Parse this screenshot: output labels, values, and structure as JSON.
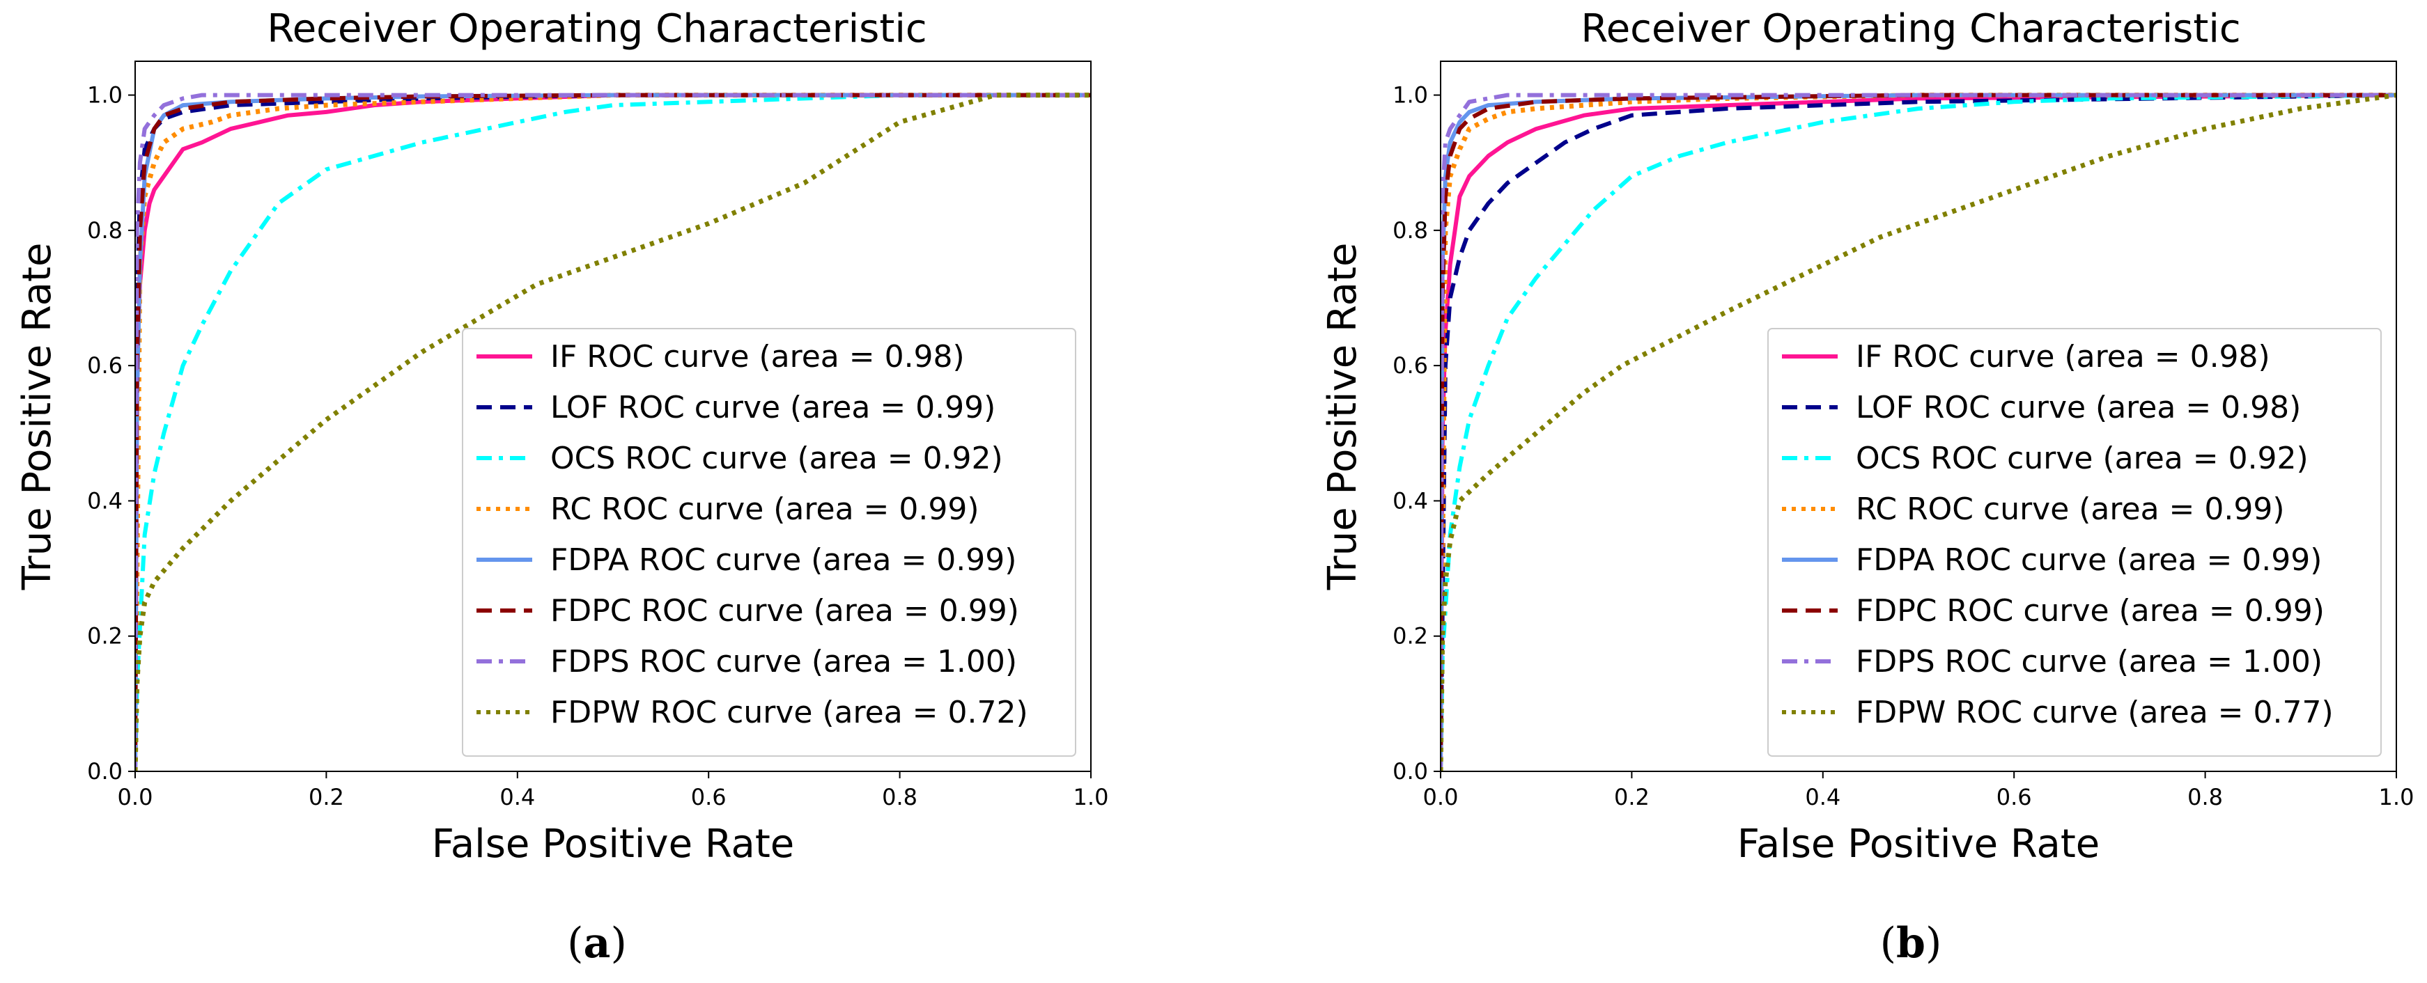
{
  "chart_data": [
    {
      "type": "line",
      "panel_label": "a",
      "title": "Receiver Operating Characteristic",
      "xlabel": "False Positive Rate",
      "ylabel": "True Positive Rate",
      "xlim": [
        0.0,
        1.0
      ],
      "ylim": [
        0.0,
        1.05
      ],
      "xticks": [
        "0.0",
        "0.2",
        "0.4",
        "0.6",
        "0.8",
        "1.0"
      ],
      "yticks": [
        "0.0",
        "0.2",
        "0.4",
        "0.6",
        "0.8",
        "1.0"
      ],
      "grid": false,
      "legend_position": "lower-right",
      "series": [
        {
          "name": "IF ROC curve (area = 0.98)",
          "color": "#ff1493",
          "style": "solid",
          "x": [
            0,
            0.002,
            0.005,
            0.01,
            0.015,
            0.02,
            0.03,
            0.04,
            0.05,
            0.07,
            0.1,
            0.13,
            0.16,
            0.2,
            0.25,
            0.3,
            0.4,
            0.5,
            1.0
          ],
          "y": [
            0,
            0.6,
            0.72,
            0.8,
            0.84,
            0.86,
            0.88,
            0.9,
            0.92,
            0.93,
            0.95,
            0.96,
            0.97,
            0.975,
            0.985,
            0.99,
            0.995,
            1.0,
            1.0
          ]
        },
        {
          "name": "LOF ROC curve (area = 0.99)",
          "color": "#00008b",
          "style": "dashed",
          "x": [
            0,
            0.002,
            0.005,
            0.01,
            0.02,
            0.03,
            0.05,
            0.1,
            0.2,
            0.3,
            0.5,
            1.0
          ],
          "y": [
            0,
            0.7,
            0.85,
            0.92,
            0.95,
            0.965,
            0.975,
            0.985,
            0.99,
            0.995,
            1.0,
            1.0
          ]
        },
        {
          "name": "OCS ROC curve (area = 0.92)",
          "color": "#00ffff",
          "style": "dashdot",
          "x": [
            0,
            0.002,
            0.01,
            0.02,
            0.03,
            0.05,
            0.07,
            0.1,
            0.13,
            0.15,
            0.2,
            0.25,
            0.3,
            0.35,
            0.4,
            0.45,
            0.5,
            0.6,
            0.7,
            0.8,
            1.0
          ],
          "y": [
            0,
            0.13,
            0.35,
            0.44,
            0.5,
            0.6,
            0.66,
            0.74,
            0.8,
            0.84,
            0.89,
            0.91,
            0.93,
            0.945,
            0.96,
            0.975,
            0.985,
            0.99,
            0.995,
            1.0,
            1.0
          ]
        },
        {
          "name": "RC ROC curve (area = 0.99)",
          "color": "#ff8c00",
          "style": "dotted",
          "x": [
            0,
            0.005,
            0.01,
            0.02,
            0.03,
            0.05,
            0.08,
            0.1,
            0.15,
            0.2,
            0.3,
            0.5,
            1.0
          ],
          "y": [
            0,
            0.75,
            0.85,
            0.9,
            0.93,
            0.95,
            0.96,
            0.97,
            0.98,
            0.985,
            0.99,
            1.0,
            1.0
          ]
        },
        {
          "name": "FDPA ROC curve (area = 0.99)",
          "color": "#6495ed",
          "style": "solid",
          "x": [
            0,
            0.002,
            0.005,
            0.01,
            0.02,
            0.03,
            0.05,
            0.1,
            0.2,
            0.3,
            0.5,
            1.0
          ],
          "y": [
            0,
            0.55,
            0.75,
            0.88,
            0.95,
            0.97,
            0.985,
            0.99,
            0.995,
            0.998,
            1.0,
            1.0
          ]
        },
        {
          "name": "FDPC ROC curve (area = 0.99)",
          "color": "#8b0000",
          "style": "dashed",
          "x": [
            0,
            0.002,
            0.005,
            0.01,
            0.02,
            0.03,
            0.05,
            0.1,
            0.2,
            0.3,
            0.5,
            1.0
          ],
          "y": [
            0,
            0.6,
            0.8,
            0.9,
            0.95,
            0.97,
            0.98,
            0.99,
            0.995,
            0.998,
            1.0,
            1.0
          ]
        },
        {
          "name": "FDPS ROC curve (area = 1.00)",
          "color": "#9370db",
          "style": "dashdot",
          "x": [
            0,
            0.002,
            0.005,
            0.01,
            0.02,
            0.03,
            0.04,
            0.05,
            0.07,
            0.1,
            0.2,
            0.5,
            1.0
          ],
          "y": [
            0,
            0.8,
            0.9,
            0.95,
            0.97,
            0.985,
            0.99,
            0.995,
            1.0,
            1.0,
            1.0,
            1.0,
            1.0
          ]
        },
        {
          "name": "FDPW ROC curve (area = 0.72)",
          "color": "#808000",
          "style": "dotted",
          "x": [
            0,
            0.002,
            0.005,
            0.01,
            0.02,
            0.05,
            0.1,
            0.2,
            0.3,
            0.42,
            0.5,
            0.6,
            0.7,
            0.8,
            0.9,
            1.0
          ],
          "y": [
            0,
            0.13,
            0.2,
            0.25,
            0.28,
            0.33,
            0.4,
            0.52,
            0.62,
            0.72,
            0.76,
            0.81,
            0.87,
            0.96,
            1.0,
            1.0
          ]
        }
      ]
    },
    {
      "type": "line",
      "panel_label": "b",
      "title": "Receiver Operating Characteristic",
      "xlabel": "False Positive Rate",
      "ylabel": "True Positive Rate",
      "xlim": [
        0.0,
        1.0
      ],
      "ylim": [
        0.0,
        1.05
      ],
      "xticks": [
        "0.0",
        "0.2",
        "0.4",
        "0.6",
        "0.8",
        "1.0"
      ],
      "yticks": [
        "0.0",
        "0.2",
        "0.4",
        "0.6",
        "0.8",
        "1.0"
      ],
      "grid": false,
      "legend_position": "lower-right",
      "series": [
        {
          "name": "IF ROC curve (area = 0.98)",
          "color": "#ff1493",
          "style": "solid",
          "x": [
            0,
            0.002,
            0.005,
            0.01,
            0.015,
            0.02,
            0.03,
            0.05,
            0.07,
            0.1,
            0.15,
            0.2,
            0.3,
            0.5,
            1.0
          ],
          "y": [
            0,
            0.5,
            0.65,
            0.75,
            0.8,
            0.85,
            0.88,
            0.91,
            0.93,
            0.95,
            0.97,
            0.98,
            0.985,
            0.995,
            1.0
          ]
        },
        {
          "name": "LOF ROC curve (area = 0.98)",
          "color": "#00008b",
          "style": "dashed",
          "x": [
            0,
            0.005,
            0.01,
            0.02,
            0.03,
            0.05,
            0.07,
            0.1,
            0.13,
            0.16,
            0.2,
            0.3,
            0.5,
            1.0
          ],
          "y": [
            0,
            0.6,
            0.7,
            0.76,
            0.8,
            0.84,
            0.87,
            0.9,
            0.93,
            0.95,
            0.97,
            0.98,
            0.99,
            1.0
          ]
        },
        {
          "name": "OCS ROC curve (area = 0.92)",
          "color": "#00ffff",
          "style": "dashdot",
          "x": [
            0,
            0.002,
            0.01,
            0.02,
            0.03,
            0.05,
            0.07,
            0.1,
            0.13,
            0.16,
            0.2,
            0.25,
            0.3,
            0.4,
            0.5,
            0.6,
            0.7,
            1.0
          ],
          "y": [
            0,
            0.17,
            0.35,
            0.45,
            0.52,
            0.6,
            0.67,
            0.73,
            0.78,
            0.83,
            0.88,
            0.91,
            0.93,
            0.96,
            0.98,
            0.99,
            0.995,
            1.0
          ]
        },
        {
          "name": "RC ROC curve (area = 0.99)",
          "color": "#ff8c00",
          "style": "dotted",
          "x": [
            0,
            0.005,
            0.01,
            0.02,
            0.03,
            0.05,
            0.07,
            0.1,
            0.2,
            0.3,
            0.5,
            1.0
          ],
          "y": [
            0,
            0.8,
            0.88,
            0.92,
            0.95,
            0.965,
            0.975,
            0.98,
            0.99,
            0.995,
            1.0,
            1.0
          ]
        },
        {
          "name": "FDPA ROC curve (area = 0.99)",
          "color": "#6495ed",
          "style": "solid",
          "x": [
            0,
            0.002,
            0.005,
            0.01,
            0.02,
            0.03,
            0.05,
            0.1,
            0.2,
            0.5,
            1.0
          ],
          "y": [
            0,
            0.75,
            0.88,
            0.93,
            0.96,
            0.975,
            0.985,
            0.99,
            0.995,
            1.0,
            1.0
          ]
        },
        {
          "name": "FDPC ROC curve (area = 0.99)",
          "color": "#8b0000",
          "style": "dashed",
          "x": [
            0,
            0.002,
            0.005,
            0.01,
            0.02,
            0.03,
            0.05,
            0.1,
            0.2,
            0.5,
            1.0
          ],
          "y": [
            0,
            0.7,
            0.85,
            0.91,
            0.95,
            0.965,
            0.98,
            0.99,
            0.995,
            1.0,
            1.0
          ]
        },
        {
          "name": "FDPS ROC curve (area = 1.00)",
          "color": "#9370db",
          "style": "dashdot",
          "x": [
            0,
            0.002,
            0.005,
            0.01,
            0.02,
            0.03,
            0.05,
            0.07,
            0.1,
            0.5,
            1.0
          ],
          "y": [
            0,
            0.85,
            0.93,
            0.95,
            0.97,
            0.99,
            0.995,
            1.0,
            1.0,
            1.0,
            1.0
          ]
        },
        {
          "name": "FDPW ROC curve (area = 0.77)",
          "color": "#808000",
          "style": "dotted",
          "x": [
            0,
            0.002,
            0.005,
            0.01,
            0.02,
            0.05,
            0.1,
            0.15,
            0.19,
            0.3,
            0.46,
            0.6,
            0.7,
            0.8,
            0.9,
            1.0
          ],
          "y": [
            0,
            0.2,
            0.28,
            0.34,
            0.4,
            0.44,
            0.5,
            0.56,
            0.6,
            0.68,
            0.79,
            0.86,
            0.91,
            0.95,
            0.98,
            1.0
          ]
        }
      ]
    }
  ]
}
